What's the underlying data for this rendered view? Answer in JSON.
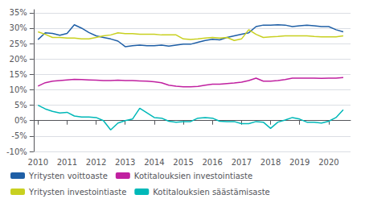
{
  "chart_data": {
    "type": "line",
    "x": [
      2010.0,
      2010.25,
      2010.5,
      2010.75,
      2011.0,
      2011.25,
      2011.5,
      2011.75,
      2012.0,
      2012.25,
      2012.5,
      2012.75,
      2013.0,
      2013.25,
      2013.5,
      2013.75,
      2014.0,
      2014.25,
      2014.5,
      2014.75,
      2015.0,
      2015.25,
      2015.5,
      2015.75,
      2016.0,
      2016.25,
      2016.5,
      2016.75,
      2017.0,
      2017.25,
      2017.5,
      2017.75,
      2018.0,
      2018.25,
      2018.5,
      2018.75,
      2019.0,
      2019.25,
      2019.5,
      2019.75,
      2020.0,
      2020.25,
      2020.5
    ],
    "series": [
      {
        "name": "Yritysten voittoaste",
        "color": "#1f5fa6",
        "values": [
          0.263,
          0.285,
          0.283,
          0.277,
          0.283,
          0.311,
          0.3,
          0.286,
          0.275,
          0.27,
          0.265,
          0.258,
          0.24,
          0.243,
          0.245,
          0.243,
          0.243,
          0.245,
          0.242,
          0.245,
          0.248,
          0.248,
          0.254,
          0.26,
          0.264,
          0.262,
          0.27,
          0.275,
          0.28,
          0.285,
          0.305,
          0.31,
          0.31,
          0.311,
          0.31,
          0.305,
          0.308,
          0.31,
          0.308,
          0.305,
          0.305,
          0.295,
          0.288
        ]
      },
      {
        "name": "Kotitalouksien investointiaste",
        "color": "#c020a0",
        "values": [
          0.112,
          0.123,
          0.128,
          0.13,
          0.132,
          0.134,
          0.133,
          0.132,
          0.131,
          0.13,
          0.13,
          0.131,
          0.13,
          0.13,
          0.129,
          0.128,
          0.126,
          0.123,
          0.115,
          0.112,
          0.11,
          0.11,
          0.111,
          0.115,
          0.118,
          0.118,
          0.12,
          0.122,
          0.125,
          0.13,
          0.138,
          0.128,
          0.128,
          0.13,
          0.133,
          0.138,
          0.138,
          0.138,
          0.138,
          0.137,
          0.138,
          0.138,
          0.14
        ]
      },
      {
        "name": "Yritysten investointiaste",
        "color": "#c8d020",
        "values": [
          0.288,
          0.28,
          0.27,
          0.27,
          0.268,
          0.268,
          0.265,
          0.265,
          0.27,
          0.275,
          0.278,
          0.285,
          0.282,
          0.282,
          0.28,
          0.28,
          0.28,
          0.278,
          0.278,
          0.278,
          0.265,
          0.263,
          0.265,
          0.268,
          0.27,
          0.268,
          0.27,
          0.26,
          0.265,
          0.295,
          0.28,
          0.27,
          0.272,
          0.273,
          0.275,
          0.275,
          0.275,
          0.275,
          0.273,
          0.272,
          0.272,
          0.272,
          0.275
        ]
      },
      {
        "name": "Kotitalouksien säästämisaste",
        "color": "#00b8b8",
        "values": [
          0.05,
          0.038,
          0.03,
          0.025,
          0.027,
          0.015,
          0.012,
          0.012,
          0.01,
          0.0,
          -0.03,
          -0.008,
          0.0,
          0.005,
          0.04,
          0.025,
          0.01,
          0.008,
          -0.002,
          -0.005,
          -0.003,
          -0.003,
          0.008,
          0.01,
          0.008,
          -0.002,
          -0.003,
          -0.003,
          -0.01,
          -0.01,
          -0.003,
          -0.005,
          -0.025,
          -0.005,
          0.002,
          0.01,
          0.005,
          -0.005,
          -0.005,
          -0.008,
          -0.002,
          0.01,
          0.035
        ]
      }
    ],
    "xlim": [
      2009.85,
      2020.75
    ],
    "xticks": [
      2010,
      2011,
      2012,
      2013,
      2014,
      2015,
      2016,
      2017,
      2018,
      2019,
      2020
    ],
    "ylim": [
      -0.1,
      0.36
    ],
    "yticks": [
      {
        "value": -0.1,
        "label": "-10%"
      },
      {
        "value": -0.05,
        "label": "-5%"
      },
      {
        "value": 0.0,
        "label": "0%"
      },
      {
        "value": 0.05,
        "label": "5%"
      },
      {
        "value": 0.1,
        "label": "10%"
      },
      {
        "value": 0.15,
        "label": "15%"
      },
      {
        "value": 0.2,
        "label": "20%"
      },
      {
        "value": 0.25,
        "label": "25%"
      },
      {
        "value": 0.3,
        "label": "30%"
      },
      {
        "value": 0.35,
        "label": "35%"
      }
    ],
    "grid": true,
    "legend": "lower left"
  }
}
